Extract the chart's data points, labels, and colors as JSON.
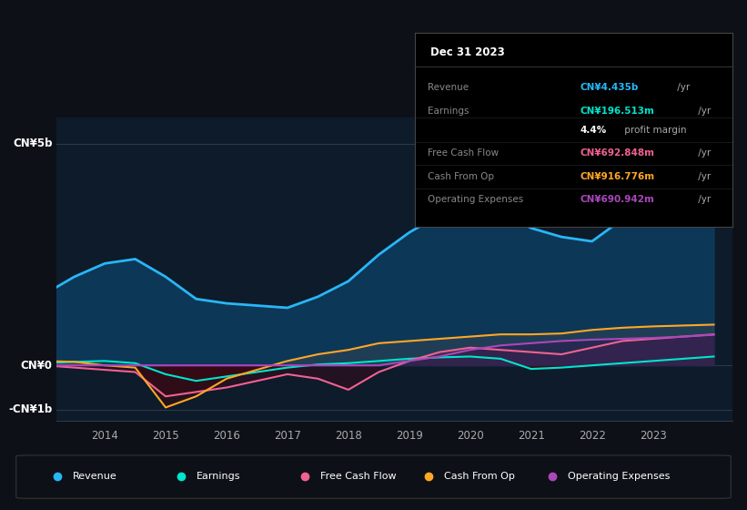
{
  "bg_color": "#0d1117",
  "plot_bg_color": "#0d1b2a",
  "years": [
    2013.0,
    2013.5,
    2014.0,
    2014.5,
    2015.0,
    2015.5,
    2016.0,
    2016.5,
    2017.0,
    2017.5,
    2018.0,
    2018.5,
    2019.0,
    2019.5,
    2020.0,
    2020.5,
    2021.0,
    2021.5,
    2022.0,
    2022.5,
    2023.0,
    2023.5,
    2024.0
  ],
  "revenue": [
    1.6,
    2.0,
    2.3,
    2.4,
    2.0,
    1.5,
    1.4,
    1.35,
    1.3,
    1.55,
    1.9,
    2.5,
    3.0,
    3.4,
    3.7,
    3.5,
    3.1,
    2.9,
    2.8,
    3.3,
    4.0,
    4.4,
    5.0
  ],
  "earnings": [
    0.05,
    0.08,
    0.1,
    0.05,
    -0.2,
    -0.35,
    -0.25,
    -0.15,
    -0.05,
    0.02,
    0.05,
    0.1,
    0.15,
    0.18,
    0.2,
    0.15,
    -0.08,
    -0.05,
    0.0,
    0.05,
    0.1,
    0.15,
    0.2
  ],
  "free_cash_flow": [
    0.0,
    -0.05,
    -0.1,
    -0.15,
    -0.7,
    -0.6,
    -0.5,
    -0.35,
    -0.2,
    -0.3,
    -0.55,
    -0.15,
    0.1,
    0.3,
    0.4,
    0.35,
    0.3,
    0.25,
    0.4,
    0.55,
    0.6,
    0.65,
    0.7
  ],
  "cash_from_op": [
    0.1,
    0.08,
    0.0,
    -0.05,
    -0.95,
    -0.7,
    -0.3,
    -0.1,
    0.1,
    0.25,
    0.35,
    0.5,
    0.55,
    0.6,
    0.65,
    0.7,
    0.7,
    0.72,
    0.8,
    0.85,
    0.88,
    0.9,
    0.92
  ],
  "operating_expenses": [
    0.0,
    0.0,
    0.0,
    0.0,
    0.0,
    0.0,
    0.0,
    0.0,
    0.0,
    0.0,
    0.0,
    0.0,
    0.1,
    0.2,
    0.35,
    0.45,
    0.5,
    0.55,
    0.58,
    0.6,
    0.62,
    0.65,
    0.69
  ],
  "revenue_color": "#29b6f6",
  "earnings_color": "#00e5cc",
  "free_cash_flow_color": "#f06292",
  "cash_from_op_color": "#ffa726",
  "operating_expenses_color": "#ab47bc",
  "ylim": [
    -1.25,
    5.6
  ],
  "yticks": [
    -1.0,
    0.0,
    5.0
  ],
  "ytick_labels": [
    "-CN¥1b",
    "CN¥0",
    "CN¥5b"
  ],
  "xtick_years": [
    2014,
    2015,
    2016,
    2017,
    2018,
    2019,
    2020,
    2021,
    2022,
    2023
  ],
  "legend_items": [
    {
      "label": "Revenue",
      "color": "#29b6f6"
    },
    {
      "label": "Earnings",
      "color": "#00e5cc"
    },
    {
      "label": "Free Cash Flow",
      "color": "#f06292"
    },
    {
      "label": "Cash From Op",
      "color": "#ffa726"
    },
    {
      "label": "Operating Expenses",
      "color": "#ab47bc"
    }
  ],
  "info_box": {
    "title": "Dec 31 2023",
    "rows": [
      {
        "label": "Revenue",
        "value": "CN¥4.435b",
        "suffix": " /yr",
        "color": "#29b6f6",
        "bold_value": true
      },
      {
        "label": "Earnings",
        "value": "CN¥196.513m",
        "suffix": " /yr",
        "color": "#00e5cc",
        "bold_value": true
      },
      {
        "label": "",
        "value": "4.4%",
        "suffix": " profit margin",
        "color": "#ffffff",
        "bold_value": true
      },
      {
        "label": "Free Cash Flow",
        "value": "CN¥692.848m",
        "suffix": " /yr",
        "color": "#f06292",
        "bold_value": true
      },
      {
        "label": "Cash From Op",
        "value": "CN¥916.776m",
        "suffix": " /yr",
        "color": "#ffa726",
        "bold_value": true
      },
      {
        "label": "Operating Expenses",
        "value": "CN¥690.942m",
        "suffix": " /yr",
        "color": "#ab47bc",
        "bold_value": true
      }
    ]
  }
}
